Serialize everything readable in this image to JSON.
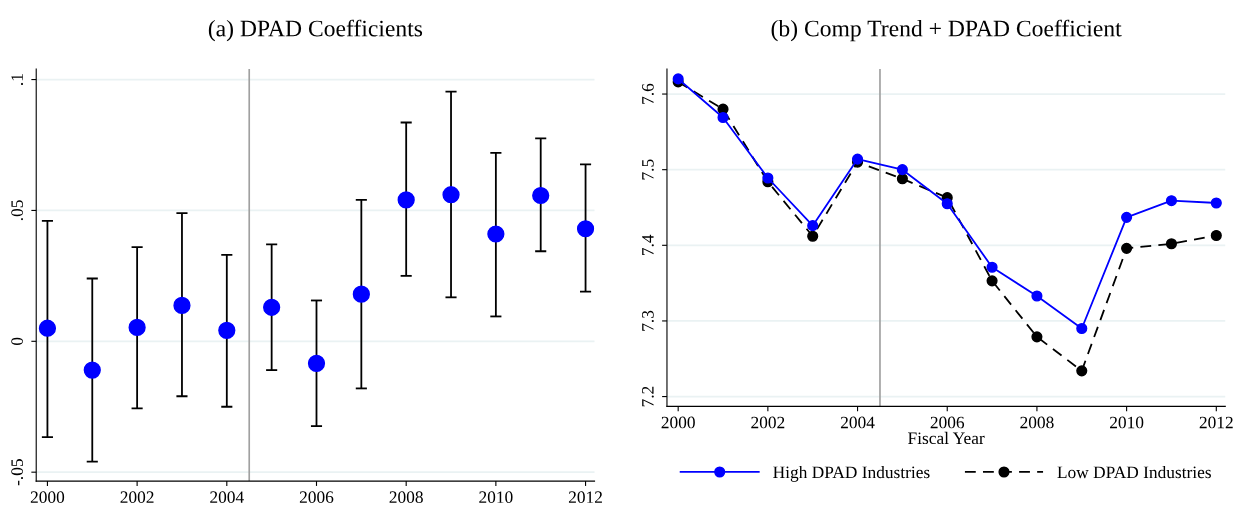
{
  "chart_data": [
    {
      "type": "scatter",
      "title": "(a) DPAD Coefficients",
      "x": [
        2000,
        2001,
        2002,
        2003,
        2004,
        2005,
        2006,
        2007,
        2008,
        2009,
        2010,
        2011,
        2012
      ],
      "series": [
        {
          "color": "#0000ff",
          "values": [
            0.005,
            -0.011,
            0.0053,
            0.0137,
            0.0042,
            0.013,
            -0.0084,
            0.018,
            0.054,
            0.056,
            0.041,
            0.0557,
            0.043
          ],
          "errors": [
            [
              -0.0366,
              0.046
            ],
            [
              -0.046,
              0.024
            ],
            [
              -0.0256,
              0.036
            ],
            [
              -0.021,
              0.049
            ],
            [
              -0.025,
              0.033
            ],
            [
              -0.011,
              0.037
            ],
            [
              -0.0324,
              0.0156
            ],
            [
              -0.018,
              0.054
            ],
            [
              0.025,
              0.0836
            ],
            [
              0.0168,
              0.0954
            ],
            [
              0.0095,
              0.072
            ],
            [
              0.0344,
              0.0775
            ],
            [
              0.019,
              0.0676
            ]
          ]
        }
      ],
      "marker": "circle",
      "xlim": [
        1999.75,
        2012.2
      ],
      "xticks": [
        2000,
        2002,
        2004,
        2006,
        2008,
        2010,
        2012
      ],
      "ylim": [
        -0.0534,
        0.104
      ],
      "yticks": [
        {
          "value": -0.05,
          "label": "-.05"
        },
        {
          "value": 0,
          "label": "0"
        },
        {
          "value": 0.05,
          "label": ".05"
        },
        {
          "value": 0.1,
          "label": ".1"
        }
      ],
      "ref_lines": [
        {
          "axis": "x",
          "value": 2004.5,
          "color": "#a0a0a0"
        }
      ],
      "grid": "y",
      "legend": false
    },
    {
      "type": "line",
      "title": "(b) Comp Trend + DPAD Coefficient",
      "xlabel": "Fiscal Year",
      "x": [
        2000,
        2001,
        2002,
        2003,
        2004,
        2005,
        2006,
        2007,
        2008,
        2009,
        2010,
        2011,
        2012
      ],
      "series": [
        {
          "name": "High DPAD Industries",
          "color": "#0000ff",
          "line_style": "solid",
          "values": [
            7.62,
            7.569,
            7.489,
            7.426,
            7.514,
            7.5,
            7.455,
            7.371,
            7.333,
            7.29,
            7.437,
            7.459,
            7.456
          ]
        },
        {
          "name": "Low DPAD Industries",
          "color": "#000000",
          "line_style": "dashed",
          "values": [
            7.616,
            7.58,
            7.484,
            7.412,
            7.51,
            7.488,
            7.463,
            7.353,
            7.279,
            7.234,
            7.396,
            7.402,
            7.413
          ]
        }
      ],
      "marker": "circle",
      "xlim": [
        1999.75,
        2012.2
      ],
      "xticks": [
        2000,
        2002,
        2004,
        2006,
        2008,
        2010,
        2012
      ],
      "ylim": [
        7.187,
        7.633
      ],
      "yticks": [
        7.2,
        7.3,
        7.4,
        7.5,
        7.6
      ],
      "ref_lines": [
        {
          "axis": "x",
          "value": 2004.5,
          "color": "#a0a0a0"
        }
      ],
      "grid": "y",
      "legend": "bottom"
    }
  ]
}
